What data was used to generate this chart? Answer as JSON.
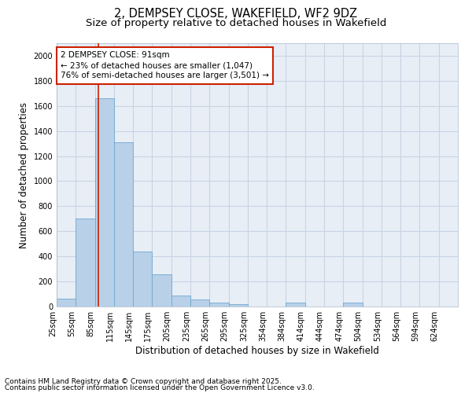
{
  "title_line1": "2, DEMPSEY CLOSE, WAKEFIELD, WF2 9DZ",
  "title_line2": "Size of property relative to detached houses in Wakefield",
  "xlabel": "Distribution of detached houses by size in Wakefield",
  "ylabel": "Number of detached properties",
  "categories": [
    "25sqm",
    "55sqm",
    "85sqm",
    "115sqm",
    "145sqm",
    "175sqm",
    "205sqm",
    "235sqm",
    "265sqm",
    "295sqm",
    "325sqm",
    "354sqm",
    "384sqm",
    "414sqm",
    "444sqm",
    "474sqm",
    "504sqm",
    "534sqm",
    "564sqm",
    "594sqm",
    "624sqm"
  ],
  "values": [
    65,
    700,
    1660,
    1310,
    440,
    255,
    90,
    55,
    30,
    20,
    0,
    0,
    30,
    0,
    0,
    30,
    0,
    0,
    0,
    0,
    0
  ],
  "bar_color": "#b8d0e8",
  "bar_edge_color": "#6fa8d0",
  "grid_color": "#c8d4e4",
  "background_color": "#e8eef6",
  "vline_color": "#cc2200",
  "annotation_text": "2 DEMPSEY CLOSE: 91sqm\n← 23% of detached houses are smaller (1,047)\n76% of semi-detached houses are larger (3,501) →",
  "annotation_box_color": "#ffffff",
  "annotation_box_edge": "#cc2200",
  "ylim": [
    0,
    2100
  ],
  "yticks": [
    0,
    200,
    400,
    600,
    800,
    1000,
    1200,
    1400,
    1600,
    1800,
    2000
  ],
  "footnote_line1": "Contains HM Land Registry data © Crown copyright and database right 2025.",
  "footnote_line2": "Contains public sector information licensed under the Open Government Licence v3.0.",
  "title_fontsize": 10.5,
  "subtitle_fontsize": 9.5,
  "axis_label_fontsize": 8.5,
  "tick_fontsize": 7,
  "annotation_fontsize": 7.5,
  "footnote_fontsize": 6.5
}
